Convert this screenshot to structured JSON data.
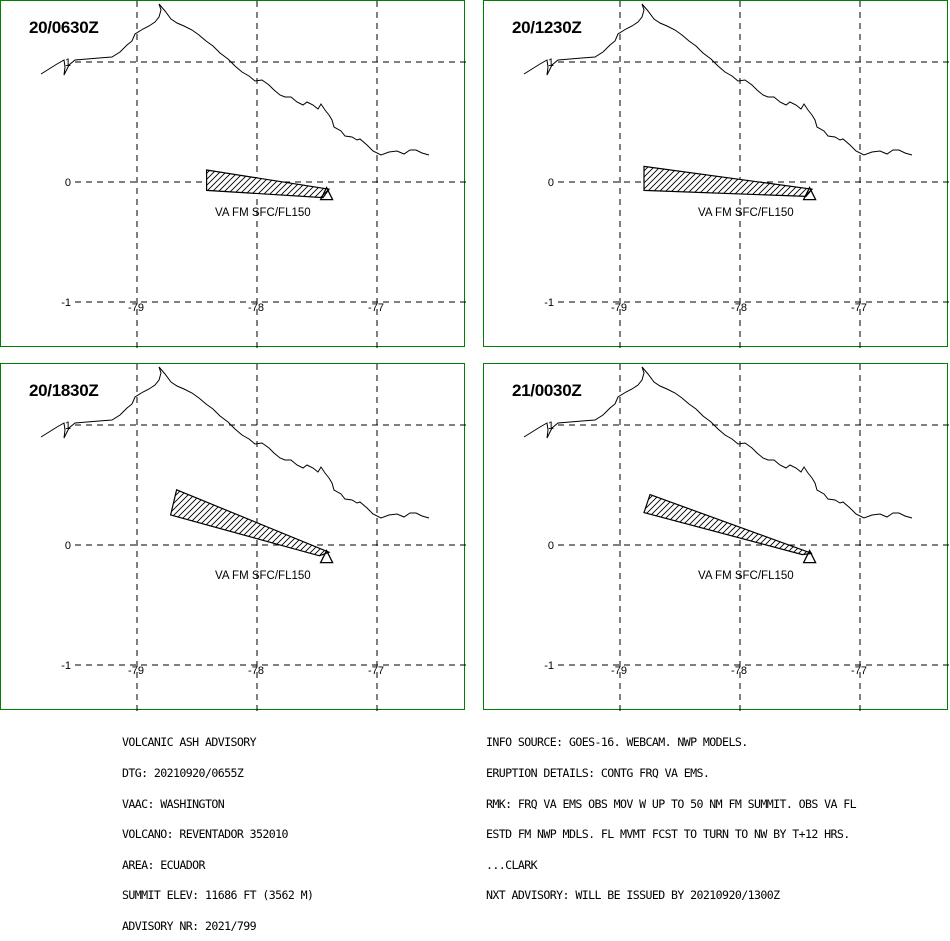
{
  "panels": [
    {
      "time": "20/0630Z",
      "label": "VA FM SFC/FL150",
      "ash_polygon": [
        [
          -78.42,
          0.1
        ],
        [
          -77.4,
          -0.06
        ],
        [
          -77.45,
          -0.13
        ],
        [
          -78.42,
          -0.07
        ]
      ]
    },
    {
      "time": "20/1230Z",
      "label": "VA FM SFC/FL150",
      "ash_polygon": [
        [
          -78.8,
          0.13
        ],
        [
          -77.4,
          -0.06
        ],
        [
          -77.45,
          -0.12
        ],
        [
          -78.8,
          -0.07
        ]
      ]
    },
    {
      "time": "20/1830Z",
      "label": "VA FM SFC/FL150",
      "ash_polygon": [
        [
          -78.67,
          0.46
        ],
        [
          -77.4,
          -0.06
        ],
        [
          -77.48,
          -0.09
        ],
        [
          -78.72,
          0.25
        ]
      ]
    },
    {
      "time": "21/0030Z",
      "label": "VA FM SFC/FL150",
      "ash_polygon": [
        [
          -78.75,
          0.42
        ],
        [
          -77.4,
          -0.07
        ],
        [
          -77.48,
          -0.08
        ],
        [
          -78.8,
          0.27
        ]
      ]
    }
  ],
  "map": {
    "lon_ticks": [
      "-79",
      "-78",
      "-77"
    ],
    "lat_ticks": [
      "1",
      "0",
      "-1"
    ],
    "volcano_symbol": "triangle-icon",
    "boundary_color": "#000000",
    "ash_hatch_color": "#000000",
    "panel_border_color": "#008000"
  },
  "advisory_left": [
    "VOLCANIC ASH ADVISORY",
    "DTG: 20210920/0655Z",
    "VAAC: WASHINGTON",
    "VOLCANO: REVENTADOR 352010",
    "AREA: ECUADOR",
    "SUMMIT ELEV: 11686 FT (3562 M)",
    "ADVISORY NR: 2021/799"
  ],
  "advisory_right": [
    "INFO SOURCE: GOES-16. WEBCAM. NWP MODELS.",
    "ERUPTION DETAILS: CONTG FRQ VA EMS.",
    "RMK: FRQ VA EMS OBS MOV W UP TO 50 NM FM SUMMIT. OBS VA FL",
    "ESTD FM NWP MDLS. FL MVMT FCST TO TURN TO NW BY T+12 HRS.",
    "...CLARK",
    "NXT ADVISORY: WILL BE ISSUED BY 20210920/1300Z"
  ]
}
